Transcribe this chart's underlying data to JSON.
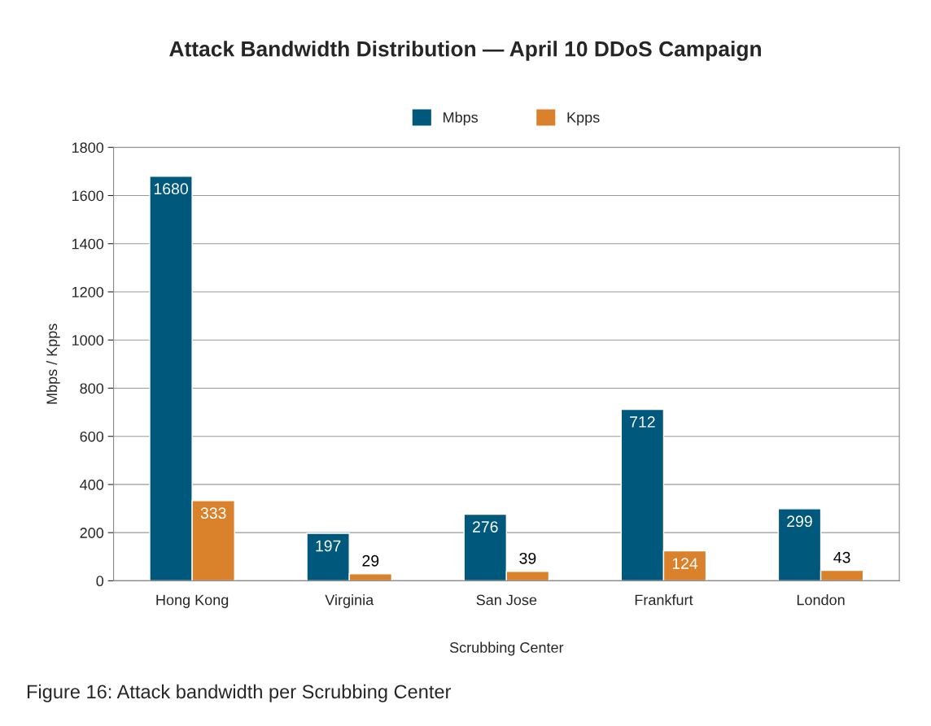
{
  "chart_data": {
    "type": "bar",
    "title": "Attack Bandwidth Distribution — April 10 DDoS Campaign",
    "xlabel": "Scrubbing Center",
    "ylabel": "Mbps / Kpps",
    "categories": [
      "Hong Kong",
      "Virginia",
      "San Jose",
      "Frankfurt",
      "London"
    ],
    "series": [
      {
        "name": "Mbps",
        "color": "#00587c",
        "values": [
          1680,
          197,
          276,
          712,
          299
        ]
      },
      {
        "name": "Kpps",
        "color": "#d9822b",
        "values": [
          333,
          29,
          39,
          124,
          43
        ]
      }
    ],
    "ylim": [
      0,
      1800
    ],
    "yticks": [
      0,
      200,
      400,
      600,
      800,
      1000,
      1200,
      1400,
      1600,
      1800
    ],
    "grid": "y",
    "legend": "top",
    "data_labels": true,
    "annotations": [
      "Figure 16: Attack bandwidth per Scrubbing Center"
    ]
  }
}
